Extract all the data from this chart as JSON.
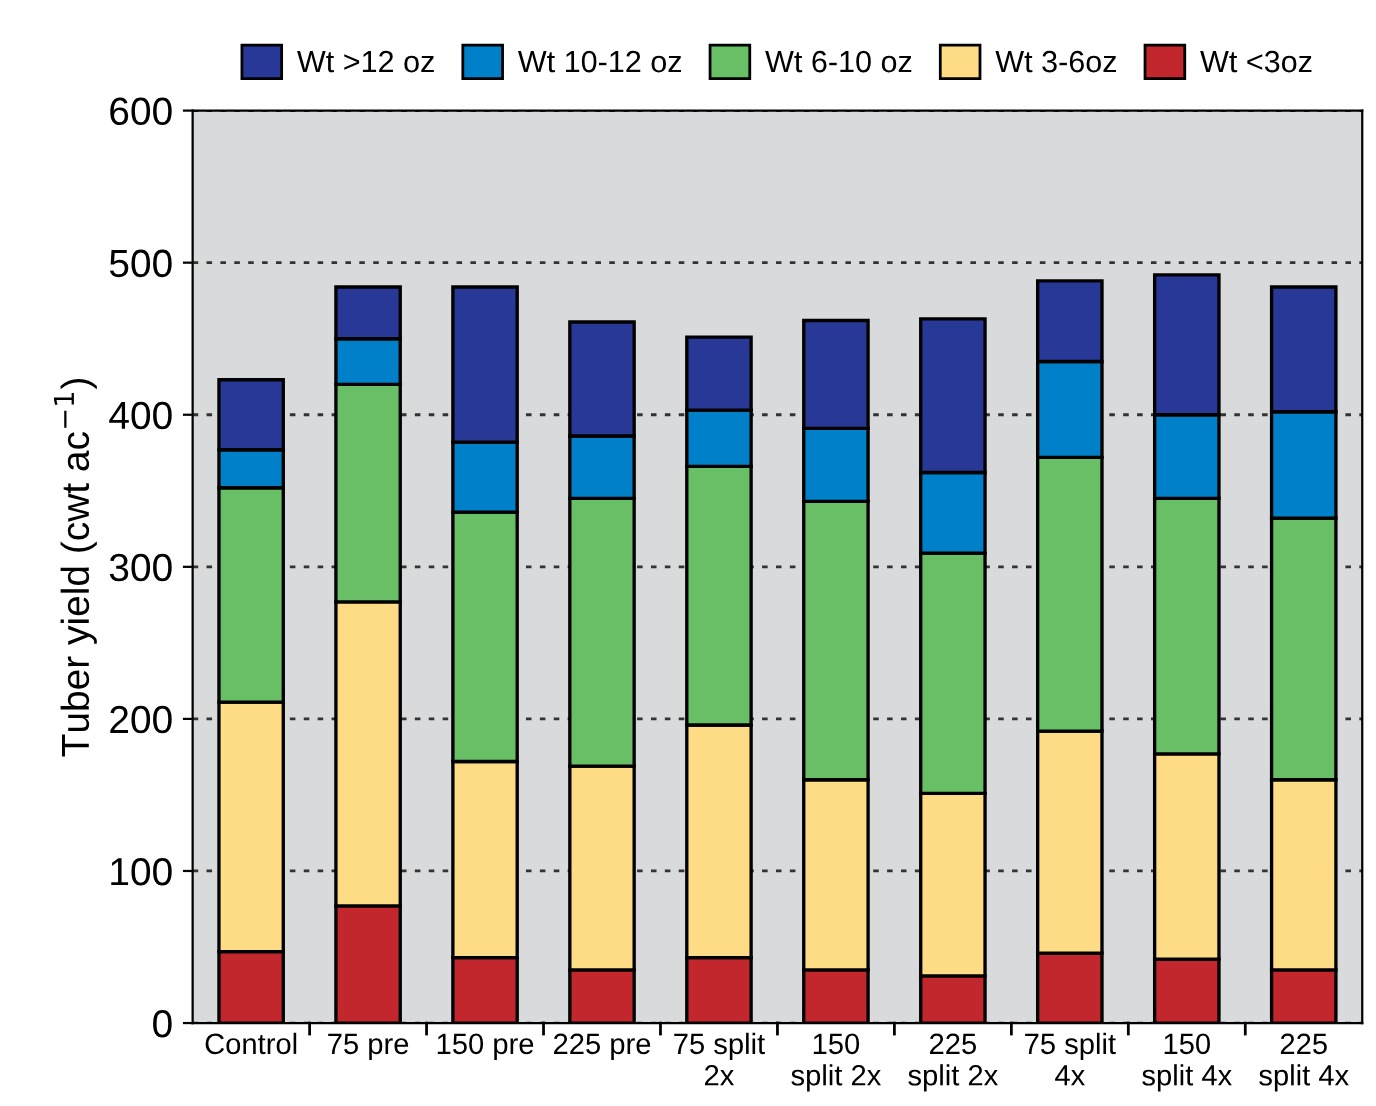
{
  "chart_data": {
    "type": "bar",
    "stacked": true,
    "ylabel": "Tuber yield (cwt ac$^{−1}$)",
    "categories": [
      "Control",
      "75 pre",
      "150 pre",
      "225 pre",
      "75 split\n2x",
      "150\nsplit 2x",
      "225\nsplit 2x",
      "75 split\n4x",
      "150\nsplit 4x",
      "225\nsplit 4x"
    ],
    "series": [
      {
        "name": "Wt <3oz",
        "color": "#c1272d",
        "values": [
          47,
          77,
          43,
          35,
          43,
          35,
          31,
          46,
          42,
          35
        ]
      },
      {
        "name": "Wt 3-6oz",
        "color": "#fedc86",
        "values": [
          164,
          200,
          129,
          134,
          153,
          125,
          120,
          146,
          135,
          125
        ]
      },
      {
        "name": "Wt 6-10 oz",
        "color": "#69bf66",
        "values": [
          141,
          143,
          164,
          176,
          170,
          183,
          158,
          180,
          168,
          172
        ]
      },
      {
        "name": "Wt 10-12 oz",
        "color": "#0080c8",
        "values": [
          25,
          30,
          46,
          41,
          37,
          48,
          53,
          63,
          55,
          70
        ]
      },
      {
        "name": "Wt >12 oz",
        "color": "#283896",
        "values": [
          46,
          34,
          102,
          75,
          48,
          71,
          101,
          53,
          92,
          82
        ]
      }
    ],
    "ylim": [
      0,
      600
    ],
    "yticks": [
      0,
      100,
      200,
      300,
      400,
      500,
      600
    ],
    "grid": "y",
    "legend": "top"
  }
}
